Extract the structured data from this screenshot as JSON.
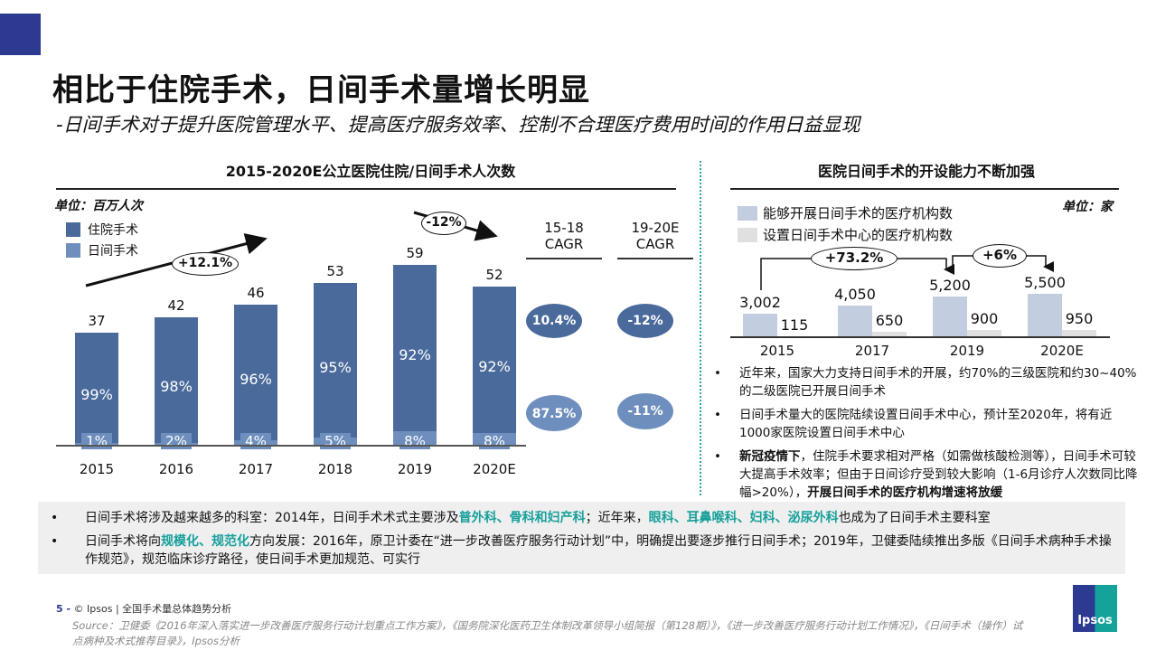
{
  "header": {
    "title": "相比于住院手术，日间手术量增长明显",
    "subtitle": "-日间手术对于提升医院管理水平、提高医疗服务效率、控制不合理医疗费用时间的作用日益显现"
  },
  "chart_data": [
    {
      "type": "bar",
      "stacked": true,
      "title": "2015-2020E公立医院住院/日间手术人次数",
      "unit": "单位：百万人次",
      "categories": [
        "2015",
        "2016",
        "2017",
        "2018",
        "2019",
        "2020E"
      ],
      "totals": [
        37,
        42,
        46,
        53,
        59,
        52
      ],
      "series": [
        {
          "name": "住院手术",
          "color": "#4a6a9c",
          "share_labels": [
            "99%",
            "98%",
            "96%",
            "95%",
            "92%",
            "92%"
          ],
          "share": [
            99,
            98,
            96,
            95,
            92,
            92
          ]
        },
        {
          "name": "日间手术",
          "color": "#6e8fbe",
          "share_labels": [
            "1%",
            "2%",
            "4%",
            "5%",
            "8%",
            "8%"
          ],
          "share": [
            1,
            2,
            4,
            5,
            8,
            8
          ]
        }
      ],
      "annotations": {
        "growth_up": "+12.1%",
        "growth_down": "-12%"
      },
      "cagr": {
        "headers": [
          [
            "15-18",
            "CAGR"
          ],
          [
            "19-20E",
            "CAGR"
          ]
        ],
        "inpatient": [
          "10.4%",
          "-12%"
        ],
        "day": [
          "87.5%",
          "-11%"
        ]
      },
      "ylim": [
        0,
        60
      ]
    },
    {
      "type": "bar",
      "title": "医院日间手术的开设能力不断加强",
      "unit": "单位：家",
      "categories": [
        "2015",
        "2017",
        "2019",
        "2020E"
      ],
      "series": [
        {
          "name": "能够开展日间手术的医疗机构数",
          "color": "#c3cde0",
          "values": [
            3002,
            4050,
            5200,
            5500
          ],
          "labels": [
            "3,002",
            "4,050",
            "5,200",
            "5,500"
          ]
        },
        {
          "name": "设置日间手术中心的医疗机构数",
          "color": "#e0e0e0",
          "values": [
            115,
            650,
            900,
            950
          ],
          "labels": [
            "115",
            "650",
            "900",
            "950"
          ]
        }
      ],
      "annotations": {
        "g1": "+73.2%",
        "g2": "+6%"
      },
      "ylim": [
        0,
        5500
      ]
    }
  ],
  "right_bullets": [
    [
      {
        "t": "近年来，国家大力支持日间手术的开展，约70%的三级医院和约30~40%的二级医院已开展日间手术"
      }
    ],
    [
      {
        "t": "日间手术量大的医院陆续设置日间手术中心，预计至2020年，将有近1000家医院设置日间手术中心"
      }
    ],
    [
      {
        "t": "新冠疫情下",
        "b": true
      },
      {
        "t": "，住院手术要求相对严格（如需做核酸检测等），日间手术可较大提高手术效率；但由于日间诊疗受到较大影响（1-6月诊疗人次数同比降幅>20%），"
      },
      {
        "t": "开展日间手术的医疗机构增速将放缓",
        "b": true
      }
    ]
  ],
  "panel_bullets": [
    [
      {
        "t": "日间手术将涉及越来越多的科室：2014年，日间手术术式主要涉及"
      },
      {
        "t": "普外科、骨科和妇产科",
        "c": true
      },
      {
        "t": "；近年来，"
      },
      {
        "t": "眼科、耳鼻喉科、妇科、泌尿外科",
        "c": true
      },
      {
        "t": "也成为了日间手术主要科室"
      }
    ],
    [
      {
        "t": "日间手术将向"
      },
      {
        "t": "规模化、规范化",
        "c": true
      },
      {
        "t": "方向发展：2016年，原卫计委在“进一步改善医疗服务行动计划”中，明确提出要逐步推行日间手术；2019年，卫健委陆续推出多版《日间手术病种手术操作规范》，规范临床诊疗路径，使日间手术更加规范、可实行"
      }
    ]
  ],
  "footer": {
    "page": "5 -",
    "text": "© Ipsos | 全国手术量总体趋势分析",
    "source": "Source：卫健委《2016年深入落实进一步改善医疗服务行动计划重点工作方案》，《国务院深化医药卫生体制改革领导小组简报（第128期）》，《进一步改善医疗服务行动计划工作情况》，《日间手术（操作）试点病种及术式推荐目录》，Ipsos分析",
    "logo": "Ipsos"
  }
}
